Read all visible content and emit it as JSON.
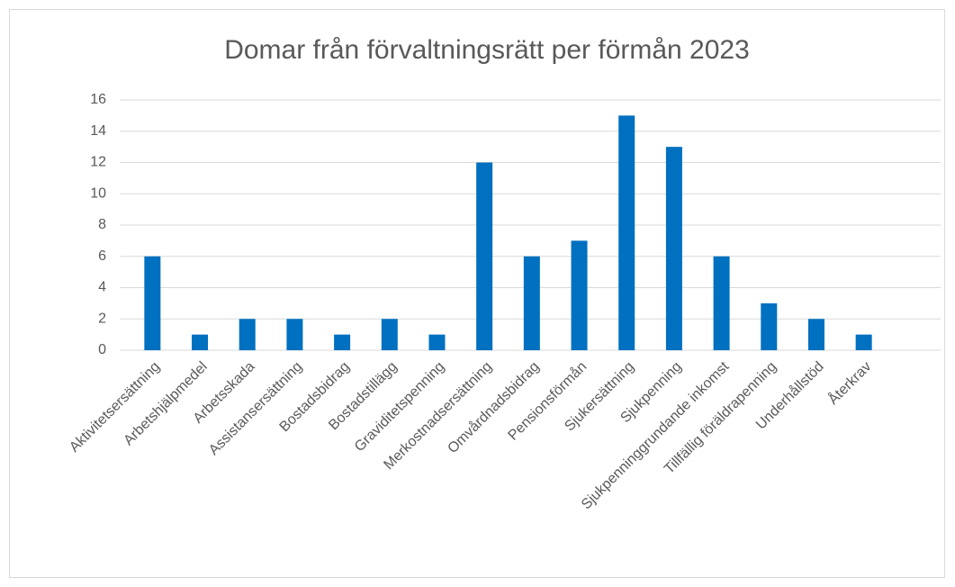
{
  "chart_data": {
    "type": "bar",
    "title": "Domar från förvaltningsrätt per förmån 2023",
    "categories": [
      "Aktivitetsersättning",
      "Arbetshjälpmedel",
      "Arbetsskada",
      "Assistansersättning",
      "Bostadsbidrag",
      "Bostadstillägg",
      "Graviditetspenning",
      "Merkostnadsersättning",
      "Omvårdnadsbidrag",
      "Pensionsförmån",
      "Sjukersättning",
      "Sjukpenning",
      "Sjukpenninggrundande inkomst",
      "Tillfällig föräldrapenning",
      "Underhållstöd",
      "Återkrav"
    ],
    "values": [
      6,
      1,
      2,
      2,
      1,
      2,
      1,
      12,
      6,
      7,
      15,
      13,
      6,
      3,
      2,
      1
    ],
    "color": "#0070c0",
    "ylim": [
      0,
      16
    ],
    "yticks": [
      0,
      2,
      4,
      6,
      8,
      10,
      12,
      14,
      16
    ],
    "grid": true
  }
}
